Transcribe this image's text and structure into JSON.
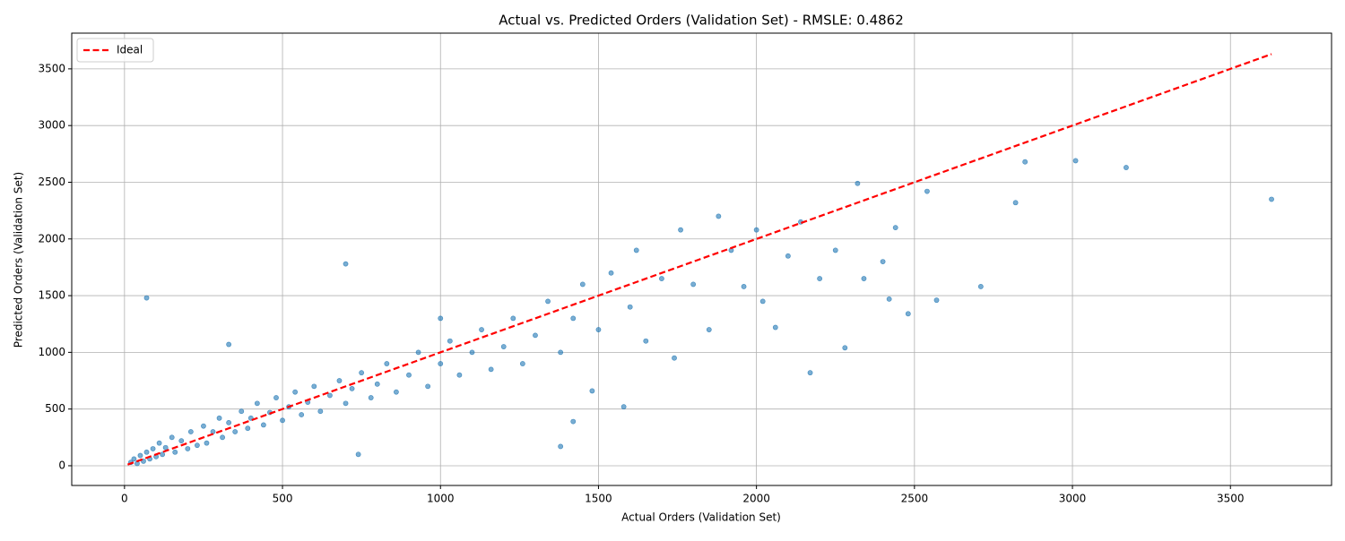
{
  "chart_data": {
    "type": "scatter",
    "title": "Actual vs. Predicted Orders (Validation Set) - RMSLE: 0.4862",
    "xlabel": "Actual Orders (Validation Set)",
    "ylabel": "Predicted Orders (Validation Set)",
    "color": "#1f77b4",
    "x": [
      20,
      30,
      40,
      50,
      60,
      70,
      80,
      90,
      100,
      110,
      120,
      130,
      150,
      160,
      180,
      200,
      210,
      230,
      250,
      260,
      280,
      300,
      310,
      330,
      350,
      370,
      390,
      400,
      420,
      440,
      460,
      480,
      500,
      520,
      540,
      560,
      580,
      600,
      620,
      650,
      680,
      700,
      720,
      750,
      780,
      800,
      830,
      860,
      900,
      930,
      960,
      1000,
      1000,
      1030,
      1060,
      1100,
      1130,
      1160,
      1200,
      1230,
      1260,
      1300,
      1340,
      1380,
      1380,
      1420,
      1420,
      1450,
      1480,
      1500,
      1540,
      1580,
      1600,
      1620,
      1650,
      1700,
      1740,
      1760,
      1800,
      1850,
      1880,
      1920,
      1960,
      2000,
      2020,
      2060,
      2100,
      2140,
      2170,
      2200,
      2250,
      2280,
      2320,
      2340,
      2400,
      2420,
      2440,
      2480,
      2540,
      2570,
      2710,
      2820,
      2850,
      3010,
      3170,
      3630,
      70,
      700,
      740,
      330
    ],
    "values": [
      30,
      60,
      20,
      90,
      40,
      120,
      60,
      150,
      80,
      200,
      100,
      160,
      250,
      120,
      220,
      150,
      300,
      180,
      350,
      200,
      300,
      420,
      250,
      380,
      300,
      480,
      330,
      420,
      550,
      360,
      470,
      600,
      400,
      520,
      650,
      450,
      560,
      700,
      480,
      620,
      750,
      550,
      680,
      820,
      600,
      720,
      900,
      650,
      800,
      1000,
      700,
      900,
      1300,
      1100,
      800,
      1000,
      1200,
      850,
      1050,
      1300,
      900,
      1150,
      1450,
      170,
      1000,
      1300,
      390,
      1600,
      660,
      1200,
      1700,
      520,
      1400,
      1900,
      1100,
      1650,
      950,
      2080,
      1600,
      1200,
      2200,
      1900,
      1580,
      2080,
      1450,
      1220,
      1850,
      2150,
      820,
      1650,
      1900,
      1040,
      2490,
      1650,
      1800,
      1470,
      2100,
      1340,
      2420,
      1460,
      1580,
      2320,
      2680,
      2690,
      2630,
      2350,
      1480,
      1780,
      100,
      1070
    ],
    "lines": [
      {
        "name": "Ideal",
        "color": "red",
        "dashed": true,
        "x": [
          10,
          3630
        ],
        "values": [
          10,
          3630
        ]
      }
    ],
    "xlim": [
      -167,
      3820
    ],
    "ylim": [
      -174,
      3815
    ],
    "xticks": [
      0,
      500,
      1000,
      1500,
      2000,
      2500,
      3000,
      3500
    ],
    "yticks": [
      0,
      500,
      1000,
      1500,
      2000,
      2500,
      3000,
      3500
    ],
    "grid": true,
    "legend": "upper left"
  }
}
